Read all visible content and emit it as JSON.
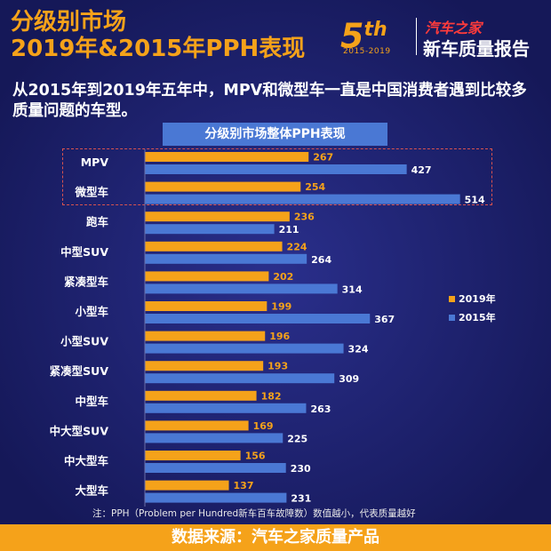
{
  "header": {
    "title_line1": "分级别市场",
    "title_line2": "2019年&2015年PPH表现",
    "logo_5th": "5",
    "logo_5th_sup": "th",
    "logo_years": "2015-2019",
    "logo_brand": "汽车之家",
    "logo_sub": "新车质量报告"
  },
  "subtitle": "从2015年到2019年五年中，MPV和微型车一直是中国消费者遇到比较多质量问题的车型。",
  "note": "注：PPH（Problem per Hundred新车百车故障数）数值越小，代表质量越好",
  "footer": "数据来源：汽车之家质量产品",
  "colors": {
    "bar_2019": "#f5a21a",
    "bar_2015": "#4a78d4",
    "label_2019": "#f5a21a",
    "label_2015": "#ffffff",
    "background": "#1c1f6e"
  },
  "chart_data": {
    "type": "bar",
    "orientation": "horizontal",
    "title": "分级别市场整体PPH表现",
    "categories": [
      "MPV",
      "微型车",
      "跑车",
      "中型SUV",
      "紧凑型车",
      "小型车",
      "小型SUV",
      "紧凑型SUV",
      "中型车",
      "中大型SUV",
      "中大型车",
      "大型车"
    ],
    "series": [
      {
        "name": "2019年",
        "values": [
          267,
          254,
          236,
          224,
          202,
          199,
          196,
          193,
          182,
          169,
          156,
          137
        ]
      },
      {
        "name": "2015年",
        "values": [
          427,
          514,
          211,
          264,
          314,
          367,
          324,
          309,
          263,
          225,
          230,
          231
        ]
      }
    ],
    "legend_position": "right",
    "highlighted_categories": [
      "MPV",
      "微型车"
    ]
  }
}
